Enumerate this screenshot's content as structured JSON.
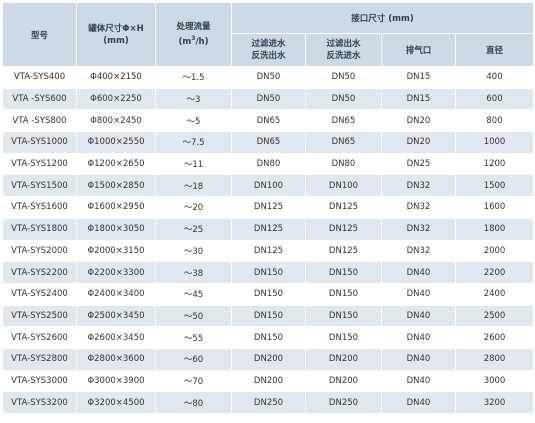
{
  "headers": {
    "model": "型号",
    "tank_size": "罐体尺寸Φ×H",
    "tank_unit": "(mm)",
    "flow": "处理流量",
    "flow_unit_pre": "(m",
    "flow_unit_sup": "3",
    "flow_unit_post": "/h)",
    "connection": "接口尺寸 (mm)",
    "filter_in_1": "过滤进水",
    "filter_in_2": "反洗出水",
    "filter_out_1": "过滤出水",
    "filter_out_2": "反洗进水",
    "vent": "排气口",
    "diameter": "直径"
  },
  "rows": [
    [
      "VTA-SYS400",
      "Φ400×2150",
      "～1.5",
      "DN50",
      "DN50",
      "DN15",
      "400"
    ],
    [
      "VTA -SYS600",
      "Φ600×2250",
      "～3",
      "DN50",
      "DN50",
      "DN15",
      "600"
    ],
    [
      "VTA -SYS800",
      "Φ800×2450",
      "～5",
      "DN65",
      "DN65",
      "DN20",
      "800"
    ],
    [
      "VTA-SYS1000",
      "Φ1000×2550",
      "～7.5",
      "DN65",
      "DN65",
      "DN20",
      "1000"
    ],
    [
      "VTA-SYS1200",
      "Φ1200×2650",
      "～11",
      "DN80",
      "DN80",
      "DN25",
      "1200"
    ],
    [
      "VTA-SYS1500",
      "Φ1500×2850",
      "～18",
      "DN100",
      "DN100",
      "DN32",
      "1500"
    ],
    [
      "VTA-SYS1600",
      "Φ1600×2950",
      "～20",
      "DN125",
      "DN125",
      "DN32",
      "1600"
    ],
    [
      "VTA-SYS1800",
      "Φ1800×3050",
      "～25",
      "DN125",
      "DN125",
      "DN32",
      "1800"
    ],
    [
      "VTA-SYS2000",
      "Φ2000×3150",
      "～30",
      "DN125",
      "DN125",
      "DN32",
      "2000"
    ],
    [
      "VTA-SYS2200",
      "Φ2200×3300",
      "～38",
      "DN150",
      "DN150",
      "DN40",
      "2200"
    ],
    [
      "VTA-SYS2400",
      "Φ2400×3400",
      "～45",
      "DN150",
      "DN150",
      "DN40",
      "2400"
    ],
    [
      "VTA-SYS2500",
      "Φ2500×3450",
      "～50",
      "DN150",
      "DN150",
      "DN40",
      "2500"
    ],
    [
      "VTA-SYS2600",
      "Φ2600×3450",
      "～55",
      "DN150",
      "DN150",
      "DN40",
      "2600"
    ],
    [
      "VTA-SYS2800",
      "Φ2800×3600",
      "～60",
      "DN200",
      "DN200",
      "DN40",
      "2800"
    ],
    [
      "VTA-SYS3000",
      "Φ3000×3900",
      "～70",
      "DN200",
      "DN200",
      "DN40",
      "3000"
    ],
    [
      "VTA-SYS3200",
      "Φ3200×4500",
      "～80",
      "DN250",
      "DN250",
      "DN40",
      "3200"
    ]
  ],
  "watermark_colors": [
    "#7fd6c8",
    "#b9a3df",
    "#f2c26b",
    "#8fd0ef"
  ]
}
